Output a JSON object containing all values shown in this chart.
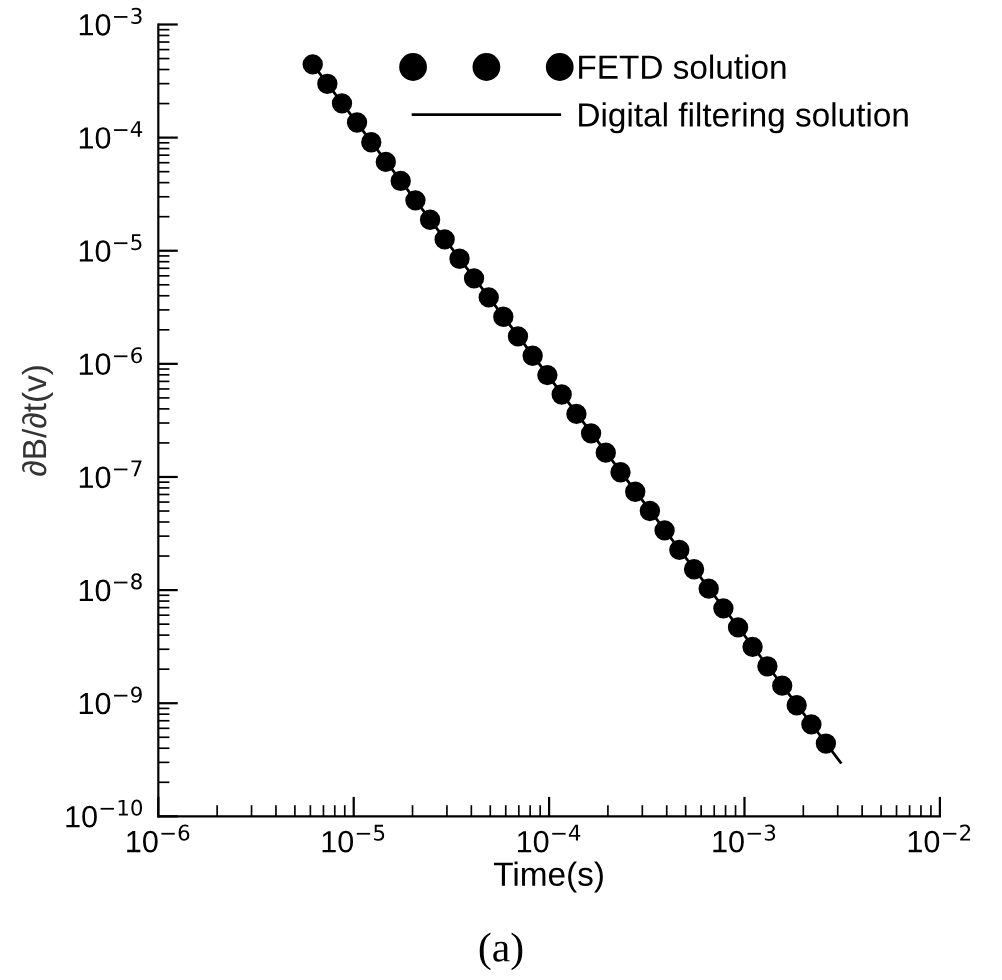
{
  "chart_data": {
    "type": "scatter",
    "xlabel": "Time(s)",
    "ylabel": "∂B/∂t(v)",
    "log": "xy",
    "annotations": [
      "(a)"
    ],
    "series": [
      {
        "name": "FETD solution",
        "color": "#000000",
        "marker": "circle",
        "x": [
          6.17e-06,
          7.33e-06,
          8.71e-06,
          1.04e-05,
          1.23e-05,
          1.46e-05,
          1.74e-05,
          2.07e-05,
          2.46e-05,
          2.92e-05,
          3.48e-05,
          4.13e-05,
          4.91e-05,
          5.83e-05,
          6.93e-05,
          8.24e-05,
          9.8e-05,
          0.000116,
          0.000138,
          0.000164,
          0.000195,
          0.000232,
          0.000276,
          0.000328,
          0.00039,
          0.000464,
          0.000552,
          0.000656,
          0.00078,
          0.000927,
          0.0011,
          0.00131,
          0.00156,
          0.00185,
          0.0022,
          0.00261
        ],
        "values": [
          0.000444,
          0.000299,
          0.000201,
          0.000136,
          9.1e-05,
          6.1e-05,
          4.14e-05,
          2.79e-05,
          1.88e-05,
          1.26e-05,
          8.5e-06,
          5.7e-06,
          3.87e-06,
          2.61e-06,
          1.75e-06,
          1.18e-06,
          7.96e-07,
          5.36e-07,
          3.61e-07,
          2.43e-07,
          1.64e-07,
          1.1e-07,
          7.4e-08,
          5e-08,
          3.37e-08,
          2.27e-08,
          1.53e-08,
          1.03e-08,
          6.9e-09,
          4.68e-09,
          3.15e-09,
          2.12e-09,
          1.43e-09,
          9.6e-10,
          6.5e-10,
          4.4e-10
        ]
      },
      {
        "name": "Digital filtering solution",
        "type": "line",
        "color": "#000000",
        "line_style": "solid",
        "x": [
          6.17e-06,
          0.0031
        ],
        "values": [
          0.000444,
          3e-10
        ]
      }
    ],
    "xlim": [
      1e-06,
      0.01
    ],
    "ylim": [
      1e-10,
      0.001
    ],
    "xticks": [
      {
        "value": 1e-06,
        "label": "10$^{−6}$"
      },
      {
        "value": 1e-05,
        "label": "10$^{−5}$"
      },
      {
        "value": 0.0001,
        "label": "10$^{−4}$"
      },
      {
        "value": 0.001,
        "label": "10$^{−3}$"
      },
      {
        "value": 0.01,
        "label": "10$^{−2}$"
      }
    ],
    "yticks": [
      {
        "value": 1e-10,
        "label": "10$^{−10}$"
      },
      {
        "value": 1e-09,
        "label": "10$^{−9}$"
      },
      {
        "value": 1e-08,
        "label": "10$^{−8}$"
      },
      {
        "value": 1e-07,
        "label": "10$^{−7}$"
      },
      {
        "value": 1e-06,
        "label": "10$^{−6}$"
      },
      {
        "value": 1e-05,
        "label": "10$^{−5}$"
      },
      {
        "value": 0.0001,
        "label": "10$^{−4}$"
      },
      {
        "value": 0.001,
        "label": "10$^{−3}$"
      }
    ],
    "legend": "top right"
  }
}
